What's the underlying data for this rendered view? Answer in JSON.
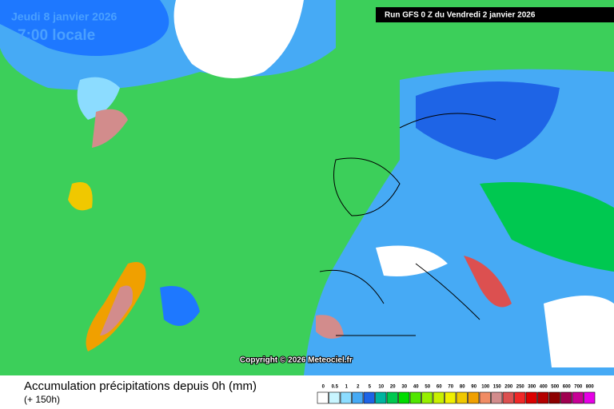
{
  "header": {
    "date": "Jeudi 8 janvier 2026",
    "time": "7:00 locale",
    "run": "Run GFS 0 Z du Vendredi 2 janvier 2026"
  },
  "copyright": "Copyright © 2026 Meteociel.fr",
  "footer": {
    "title": "Accumulation précipitations depuis 0h (mm)",
    "lead": "(+ 150h)"
  },
  "legend": [
    {
      "label": 0,
      "color": "#ffffff"
    },
    {
      "label": 0.5,
      "color": "#c8f5ff"
    },
    {
      "label": 1,
      "color": "#8cdcff"
    },
    {
      "label": 2,
      "color": "#46aaf5"
    },
    {
      "label": 5,
      "color": "#1e64e6"
    },
    {
      "label": 10,
      "color": "#00b4a0"
    },
    {
      "label": 20,
      "color": "#00c850"
    },
    {
      "label": 30,
      "color": "#00dc00"
    },
    {
      "label": 40,
      "color": "#50e600"
    },
    {
      "label": 50,
      "color": "#96f000"
    },
    {
      "label": 60,
      "color": "#c8f000"
    },
    {
      "label": 70,
      "color": "#f0f000"
    },
    {
      "label": 80,
      "color": "#f0c800"
    },
    {
      "label": 90,
      "color": "#f0a000"
    },
    {
      "label": 100,
      "color": "#f08c64"
    },
    {
      "label": 150,
      "color": "#d28c8c"
    },
    {
      "label": 200,
      "color": "#dc5050"
    },
    {
      "label": 250,
      "color": "#f02828"
    },
    {
      "label": 300,
      "color": "#dc0000"
    },
    {
      "label": 400,
      "color": "#b40000"
    },
    {
      "label": 500,
      "color": "#8c0000"
    },
    {
      "label": 600,
      "color": "#a00050"
    },
    {
      "label": 700,
      "color": "#c80096"
    },
    {
      "label": 800,
      "color": "#e600e6"
    }
  ]
}
